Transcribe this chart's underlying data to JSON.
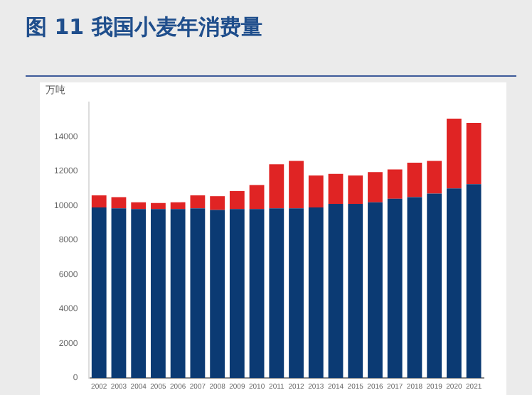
{
  "chart_data": {
    "type": "bar",
    "title": "图 11 我国小麦年消费量",
    "ylabel": "万吨",
    "stacked": true,
    "categories": [
      "2002",
      "2003",
      "2004",
      "2005",
      "2006",
      "2007",
      "2008",
      "2009",
      "2010",
      "2011",
      "2012",
      "2013",
      "2014",
      "2015",
      "2016",
      "2017",
      "2018",
      "2019",
      "2020",
      "2021"
    ],
    "series": [
      {
        "color": "#0b3a73",
        "values": [
          9900,
          9850,
          9800,
          9800,
          9800,
          9850,
          9750,
          9800,
          9800,
          9850,
          9850,
          9900,
          10100,
          10100,
          10200,
          10400,
          10500,
          10700,
          11000,
          11250
        ]
      },
      {
        "color": "#e02424",
        "values": [
          700,
          650,
          400,
          350,
          400,
          750,
          800,
          1050,
          1400,
          2550,
          2750,
          1850,
          1750,
          1650,
          1750,
          1700,
          2000,
          1900,
          4050,
          3550
        ]
      }
    ],
    "ylim": [
      0,
      16000
    ],
    "yticks": [
      0,
      2000,
      4000,
      6000,
      8000,
      10000,
      12000,
      14000
    ],
    "grid": false,
    "legend": false
  }
}
